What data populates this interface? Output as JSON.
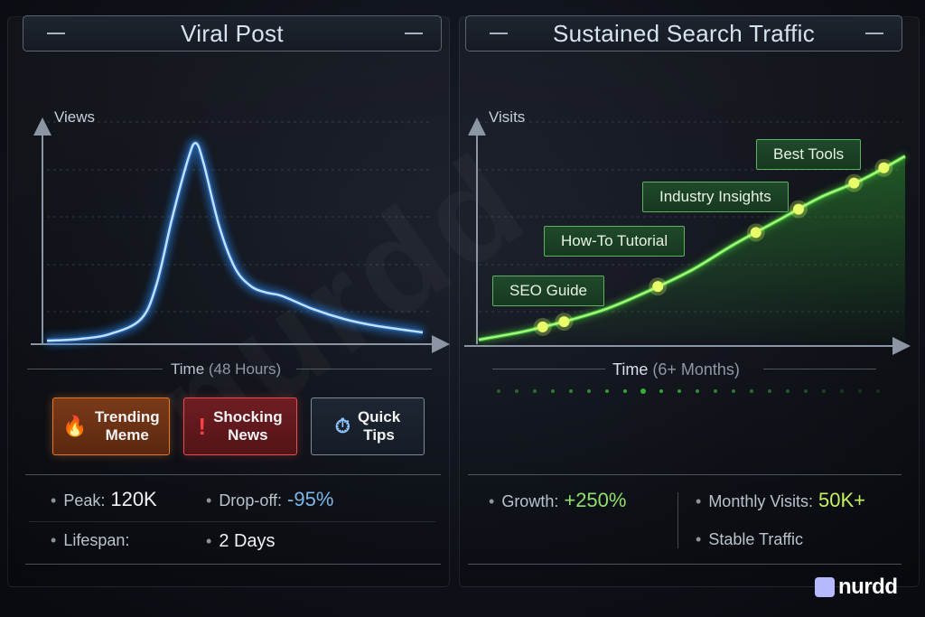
{
  "watermark": "nurdd",
  "brand": {
    "name": "nurdd"
  },
  "left": {
    "title": "Viral Post",
    "ylabel": "Views",
    "xlabel_main": "Time",
    "xlabel_paren": "(48 Hours)",
    "badges": [
      {
        "icon": "fire-icon",
        "glyph": "🔥",
        "line1": "Trending",
        "line2": "Meme"
      },
      {
        "icon": "exclamation-icon",
        "glyph": "!",
        "line1": "Shocking",
        "line2": "News"
      },
      {
        "icon": "stopwatch-icon",
        "glyph": "⏱",
        "line1": "Quick",
        "line2": "Tips"
      }
    ],
    "stats": {
      "peak_label": "Peak:",
      "peak_value": "120K",
      "dropoff_label": "Drop-off:",
      "dropoff_value": "-95%",
      "lifespan_label": "Lifespan:",
      "lifespan_value": "2 Days"
    }
  },
  "right": {
    "title": "Sustained Search Traffic",
    "ylabel": "Visits",
    "xlabel_main": "Time",
    "xlabel_paren": "(6+ Months)",
    "milestones": [
      "SEO Guide",
      "How-To Tutorial",
      "Industry Insights",
      "Best Tools"
    ],
    "stats": {
      "growth_label": "Growth:",
      "growth_value": "+250%",
      "monthly_label": "Monthly Visits:",
      "monthly_value": "50K+",
      "stable_label": "Stable Traffic"
    }
  },
  "colors": {
    "viral_line": "#2f8fff",
    "search_line": "#4fe03a",
    "marker": "#e8ff6a"
  },
  "chart_data": [
    {
      "type": "line",
      "title": "Viral Post",
      "ylabel": "Views",
      "xlabel": "Time (48 Hours)",
      "x": [
        0,
        4,
        8,
        12,
        14,
        16,
        18,
        19,
        20,
        22,
        24,
        26,
        28,
        30,
        34,
        38,
        42,
        48
      ],
      "y": [
        1,
        2,
        5,
        14,
        35,
        75,
        110,
        120,
        108,
        70,
        45,
        34,
        30,
        28,
        20,
        14,
        10,
        6
      ],
      "ylim": [
        0,
        130
      ],
      "grid": true
    },
    {
      "type": "line",
      "title": "Sustained Search Traffic",
      "ylabel": "Visits",
      "xlabel": "Time (6+ Months)",
      "x": [
        0,
        10,
        15,
        20,
        30,
        40,
        50,
        60,
        70,
        80,
        90,
        100
      ],
      "y": [
        1,
        4,
        6,
        8,
        13,
        20,
        28,
        38,
        47,
        56,
        63,
        72
      ],
      "markers_x": [
        15,
        20,
        42,
        65,
        75,
        88,
        95
      ],
      "ylim": [
        0,
        80
      ],
      "grid": true
    }
  ]
}
